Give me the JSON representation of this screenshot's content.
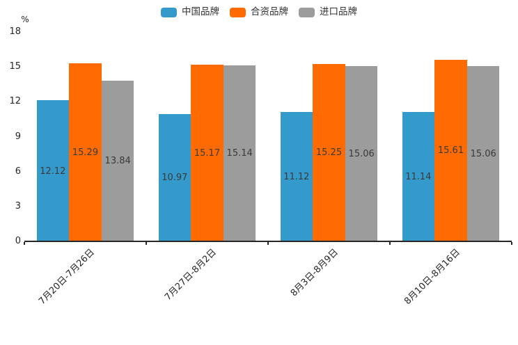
{
  "chart_data": {
    "type": "bar",
    "title": "",
    "unit_label": "%",
    "categories": [
      "7月20日-7月26日",
      "7月27日-8月2日",
      "8月3日-8月9日",
      "8月10日-8月16日"
    ],
    "series": [
      {
        "name": "中国品牌",
        "color": "#3499CB",
        "values": [
          12.12,
          10.97,
          11.12,
          11.14
        ]
      },
      {
        "name": "合资品牌",
        "color": "#FF6B00",
        "values": [
          15.29,
          15.17,
          15.25,
          15.61
        ]
      },
      {
        "name": "进口品牌",
        "color": "#9C9C9C",
        "values": [
          13.84,
          15.14,
          15.06,
          15.06
        ]
      }
    ],
    "ylim": [
      0,
      18
    ],
    "yticks": [
      0,
      3,
      6,
      9,
      12,
      15,
      18
    ],
    "legend_position": "top",
    "grid": false,
    "value_labels": true,
    "xtick_rotation": 45
  },
  "colors": {
    "axis": "#262626",
    "tick_text": "#262626",
    "value_label_text": "#3a3a3a",
    "legend_text": "#333333",
    "background": "#ffffff"
  }
}
